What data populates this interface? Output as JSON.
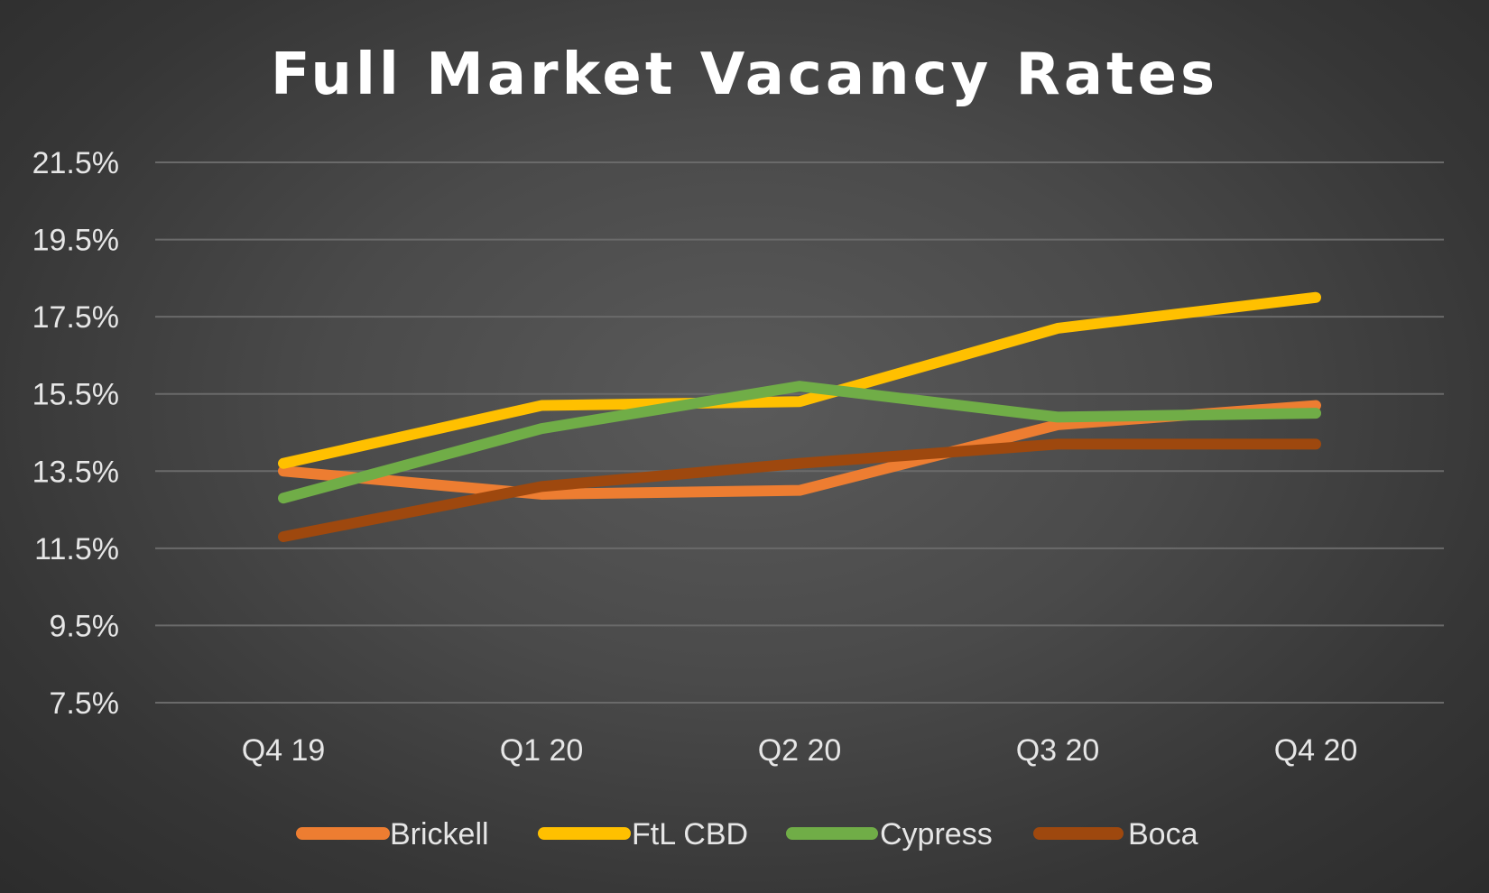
{
  "chart_data": {
    "type": "line",
    "title": "Full Market Vacancy Rates",
    "xlabel": "",
    "ylabel": "",
    "categories": [
      "Q4 19",
      "Q1 20",
      "Q2 20",
      "Q3 20",
      "Q4 20"
    ],
    "y_ticks": [
      "7.5%",
      "9.5%",
      "11.5%",
      "13.5%",
      "15.5%",
      "17.5%",
      "19.5%",
      "21.5%"
    ],
    "ylim": [
      7.5,
      21.5
    ],
    "grid": true,
    "legend_position": "bottom",
    "series": [
      {
        "name": "Brickell",
        "color": "#ED7D31",
        "values": [
          13.5,
          12.9,
          13.0,
          14.7,
          15.2
        ]
      },
      {
        "name": "FtL CBD",
        "color": "#FFC000",
        "values": [
          13.7,
          15.2,
          15.3,
          17.2,
          18.0
        ]
      },
      {
        "name": "Cypress",
        "color": "#70AD47",
        "values": [
          12.8,
          14.6,
          15.7,
          14.9,
          15.0
        ]
      },
      {
        "name": "Boca",
        "color": "#9E480E",
        "values": [
          11.8,
          13.1,
          13.7,
          14.2,
          14.2
        ]
      }
    ]
  }
}
